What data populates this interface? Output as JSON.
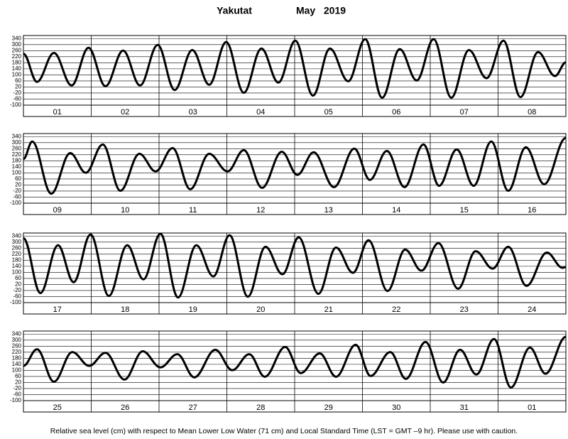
{
  "title": "Yakutat",
  "period": "May   2019",
  "footer": "Relative sea level (cm) with respect to Mean Lower Low Water (71 cm) and Local Standard Time (LST = GMT –9 hr). Please use with caution.",
  "chart_data": [
    {
      "type": "line",
      "color": "#000000",
      "grid": true,
      "xlim": [
        0,
        8
      ],
      "ylim": [
        -100,
        360
      ],
      "yticks": [
        -100,
        -60,
        -20,
        20,
        60,
        100,
        140,
        180,
        220,
        260,
        300,
        340
      ],
      "categories": [
        "01",
        "02",
        "03",
        "04",
        "05",
        "06",
        "07",
        "08"
      ],
      "x": [
        0,
        0.2,
        0.45,
        0.71,
        0.96,
        1.21,
        1.47,
        1.72,
        1.98,
        2.23,
        2.49,
        2.74,
        2.99,
        3.25,
        3.51,
        3.76,
        4.01,
        4.27,
        4.52,
        4.79,
        5.04,
        5.29,
        5.55,
        5.8,
        6.05,
        6.31,
        6.57,
        6.83,
        7.08,
        7.33,
        7.59,
        7.84,
        8
      ],
      "values": [
        240,
        54,
        245,
        30,
        279,
        25,
        260,
        30,
        298,
        0,
        264,
        35,
        317,
        -18,
        274,
        49,
        326,
        -37,
        274,
        58,
        336,
        -51,
        270,
        63,
        336,
        -51,
        264,
        78,
        326,
        -47,
        250,
        92,
        183
      ]
    },
    {
      "type": "line",
      "color": "#000000",
      "grid": true,
      "xlim": [
        0,
        8
      ],
      "ylim": [
        -100,
        360
      ],
      "yticks": [
        -100,
        -60,
        -20,
        20,
        60,
        100,
        140,
        180,
        220,
        260,
        300,
        340
      ],
      "categories": [
        "09",
        "10",
        "11",
        "12",
        "13",
        "14",
        "15",
        "16"
      ],
      "x": [
        0,
        0.13,
        0.41,
        0.69,
        0.92,
        1.17,
        1.43,
        1.71,
        1.95,
        2.2,
        2.46,
        2.74,
        3.01,
        3.25,
        3.52,
        3.81,
        4.04,
        4.28,
        4.58,
        4.88,
        5.11,
        5.36,
        5.62,
        5.9,
        6.13,
        6.39,
        6.64,
        6.9,
        7.15,
        7.41,
        7.68,
        8
      ],
      "values": [
        192,
        307,
        -37,
        231,
        101,
        288,
        -18,
        226,
        110,
        264,
        -8,
        226,
        110,
        250,
        1,
        240,
        87,
        236,
        6,
        260,
        54,
        245,
        6,
        288,
        15,
        255,
        15,
        307,
        -18,
        269,
        25,
        331
      ]
    },
    {
      "type": "line",
      "color": "#000000",
      "grid": true,
      "xlim": [
        0,
        8
      ],
      "ylim": [
        -100,
        360
      ],
      "yticks": [
        -100,
        -60,
        -20,
        20,
        60,
        100,
        140,
        180,
        220,
        260,
        300,
        340
      ],
      "categories": [
        "17",
        "18",
        "19",
        "20",
        "21",
        "22",
        "23",
        "24"
      ],
      "x": [
        0,
        0.25,
        0.51,
        0.74,
        0.99,
        1.26,
        1.53,
        1.77,
        2.02,
        2.28,
        2.55,
        2.8,
        3.04,
        3.31,
        3.57,
        3.82,
        4.06,
        4.35,
        4.61,
        4.86,
        5.09,
        5.37,
        5.63,
        5.87,
        6.12,
        6.41,
        6.67,
        6.92,
        7.15,
        7.42,
        7.72,
        7.95,
        8
      ],
      "values": [
        326,
        -37,
        279,
        35,
        350,
        -56,
        279,
        54,
        355,
        -66,
        279,
        73,
        345,
        -61,
        269,
        87,
        331,
        -42,
        264,
        97,
        312,
        -23,
        250,
        111,
        293,
        -8,
        240,
        125,
        269,
        11,
        231,
        130,
        135
      ]
    },
    {
      "type": "line",
      "color": "#000000",
      "grid": true,
      "xlim": [
        0,
        8
      ],
      "ylim": [
        -100,
        360
      ],
      "yticks": [
        -100,
        -60,
        -20,
        20,
        60,
        100,
        140,
        180,
        220,
        260,
        300,
        340
      ],
      "categories": [
        "25",
        "26",
        "27",
        "28",
        "29",
        "30",
        "31",
        "01"
      ],
      "x": [
        0,
        0.2,
        0.45,
        0.72,
        0.97,
        1.21,
        1.49,
        1.76,
        2.02,
        2.27,
        2.52,
        2.83,
        3.08,
        3.33,
        3.56,
        3.86,
        4.09,
        4.37,
        4.61,
        4.9,
        5.12,
        5.41,
        5.64,
        5.93,
        6.19,
        6.44,
        6.68,
        6.94,
        7.19,
        7.47,
        7.7,
        8
      ],
      "values": [
        130,
        240,
        25,
        221,
        130,
        216,
        39,
        226,
        120,
        207,
        54,
        236,
        101,
        207,
        58,
        255,
        82,
        212,
        58,
        269,
        63,
        221,
        44,
        288,
        20,
        236,
        73,
        307,
        -13,
        250,
        78,
        322
      ]
    }
  ]
}
